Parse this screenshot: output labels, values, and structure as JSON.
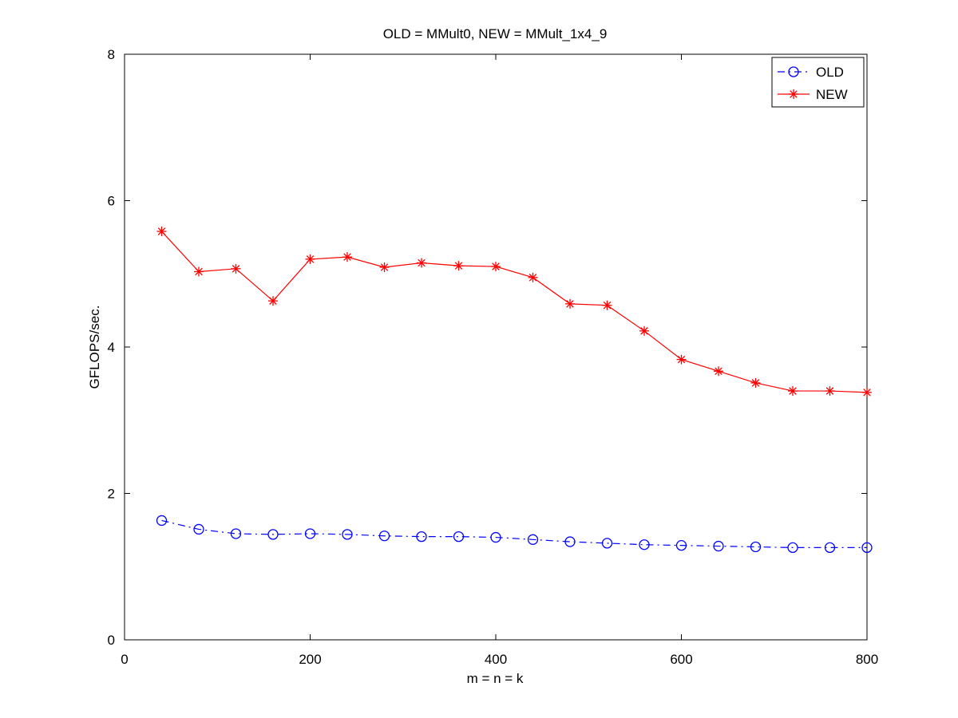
{
  "chart_data": {
    "type": "line",
    "title": "OLD = MMult0, NEW = MMult_1x4_9",
    "xlabel": "m = n = k",
    "ylabel": "GFLOPS/sec.",
    "xlim": [
      0,
      800
    ],
    "ylim": [
      0,
      8
    ],
    "xticks": [
      0,
      200,
      400,
      600,
      800
    ],
    "yticks": [
      0,
      2,
      4,
      6,
      8
    ],
    "grid": false,
    "legend_position": "top-right",
    "x": [
      40,
      80,
      120,
      160,
      200,
      240,
      280,
      320,
      360,
      400,
      440,
      480,
      520,
      560,
      600,
      640,
      680,
      720,
      760,
      800
    ],
    "series": [
      {
        "name": "OLD",
        "color": "#0000ff",
        "line_style": "dash-dot",
        "marker": "circle",
        "values": [
          1.63,
          1.51,
          1.45,
          1.44,
          1.45,
          1.44,
          1.42,
          1.41,
          1.41,
          1.4,
          1.37,
          1.34,
          1.32,
          1.3,
          1.29,
          1.28,
          1.27,
          1.26,
          1.26,
          1.26
        ]
      },
      {
        "name": "NEW",
        "color": "#ff0000",
        "line_style": "solid",
        "marker": "asterisk",
        "values": [
          5.58,
          5.03,
          5.07,
          4.63,
          5.2,
          5.23,
          5.09,
          5.15,
          5.11,
          5.1,
          4.95,
          4.59,
          4.57,
          4.22,
          3.83,
          3.67,
          3.51,
          3.4,
          3.4,
          3.38
        ]
      }
    ]
  }
}
